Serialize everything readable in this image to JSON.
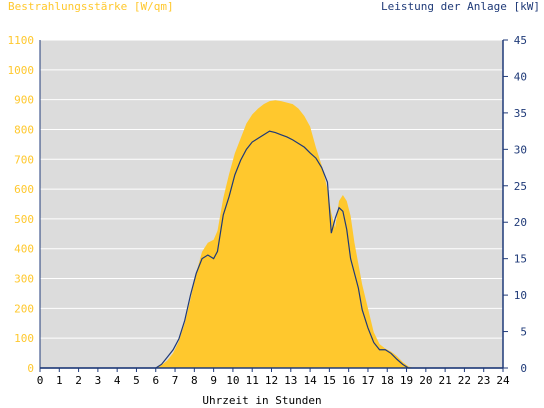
{
  "colors": {
    "irradiance": "#ffc82d",
    "power": "#1f3a78",
    "plot_background": "#dcdcdc",
    "axis": "#1f3a78",
    "grid": "#ffffff"
  },
  "chart_data": {
    "type": "area",
    "title": "",
    "xlabel": "Uhrzeit in Stunden",
    "left_axis_label": "Bestrahlungsstärke [W/qm]",
    "right_axis_label": "Leistung der Anlage [kW]",
    "xlim": [
      0,
      24
    ],
    "x_ticks": [
      0,
      1,
      2,
      3,
      4,
      5,
      6,
      7,
      8,
      9,
      10,
      11,
      12,
      13,
      14,
      15,
      16,
      17,
      18,
      19,
      20,
      21,
      22,
      23,
      24
    ],
    "ylim_left": [
      0,
      1100
    ],
    "y_ticks_left": [
      0,
      100,
      200,
      300,
      400,
      500,
      600,
      700,
      800,
      900,
      1000,
      1100
    ],
    "ylim_right": [
      0,
      45
    ],
    "y_ticks_right": [
      0,
      5,
      10,
      15,
      20,
      25,
      30,
      35,
      40,
      45
    ],
    "grid": true,
    "series": [
      {
        "name": "Bestrahlungsstärke [W/qm]",
        "axis": "left",
        "style": "filled area",
        "x": [
          0,
          6.0,
          6.3,
          6.6,
          6.9,
          7.2,
          7.5,
          7.8,
          8.1,
          8.4,
          8.7,
          9.0,
          9.2,
          9.5,
          9.8,
          10.1,
          10.4,
          10.7,
          11.0,
          11.3,
          11.6,
          11.9,
          12.2,
          12.5,
          12.8,
          13.1,
          13.4,
          13.7,
          14.0,
          14.3,
          14.6,
          14.9,
          15.1,
          15.3,
          15.5,
          15.7,
          15.9,
          16.1,
          16.3,
          16.5,
          16.7,
          17.0,
          17.3,
          17.6,
          17.9,
          18.2,
          18.5,
          18.8,
          19.1,
          19.4,
          24
        ],
        "y": [
          0,
          0,
          10,
          25,
          50,
          90,
          150,
          230,
          320,
          390,
          420,
          430,
          460,
          570,
          650,
          720,
          770,
          820,
          850,
          870,
          885,
          895,
          898,
          895,
          890,
          885,
          870,
          845,
          810,
          740,
          680,
          600,
          520,
          470,
          560,
          580,
          560,
          510,
          420,
          350,
          280,
          200,
          120,
          80,
          65,
          55,
          40,
          20,
          5,
          0,
          0
        ]
      },
      {
        "name": "Leistung der Anlage [kW]",
        "axis": "right",
        "style": "line",
        "x": [
          0,
          6.0,
          6.3,
          6.6,
          6.9,
          7.2,
          7.5,
          7.8,
          8.1,
          8.4,
          8.7,
          9.0,
          9.2,
          9.5,
          9.8,
          10.1,
          10.4,
          10.7,
          11.0,
          11.3,
          11.6,
          11.9,
          12.2,
          12.5,
          12.8,
          13.1,
          13.4,
          13.7,
          14.0,
          14.3,
          14.6,
          14.9,
          15.1,
          15.3,
          15.5,
          15.7,
          15.9,
          16.1,
          16.3,
          16.5,
          16.7,
          17.0,
          17.3,
          17.6,
          17.9,
          18.2,
          18.5,
          18.8,
          19.1,
          19.4,
          24
        ],
        "y": [
          0,
          0,
          0.5,
          1.5,
          2.5,
          4,
          6.5,
          10,
          13,
          15,
          15.5,
          15,
          16,
          21,
          23.5,
          26.5,
          28.5,
          30,
          31,
          31.5,
          32,
          32.5,
          32.3,
          32,
          31.7,
          31.3,
          30.8,
          30.3,
          29.5,
          28.8,
          27.5,
          25.5,
          18.5,
          20.5,
          22,
          21.5,
          19,
          15,
          13,
          11,
          8,
          5.5,
          3.5,
          2.5,
          2.5,
          2,
          1.2,
          0.5,
          0,
          0,
          0
        ]
      }
    ]
  }
}
